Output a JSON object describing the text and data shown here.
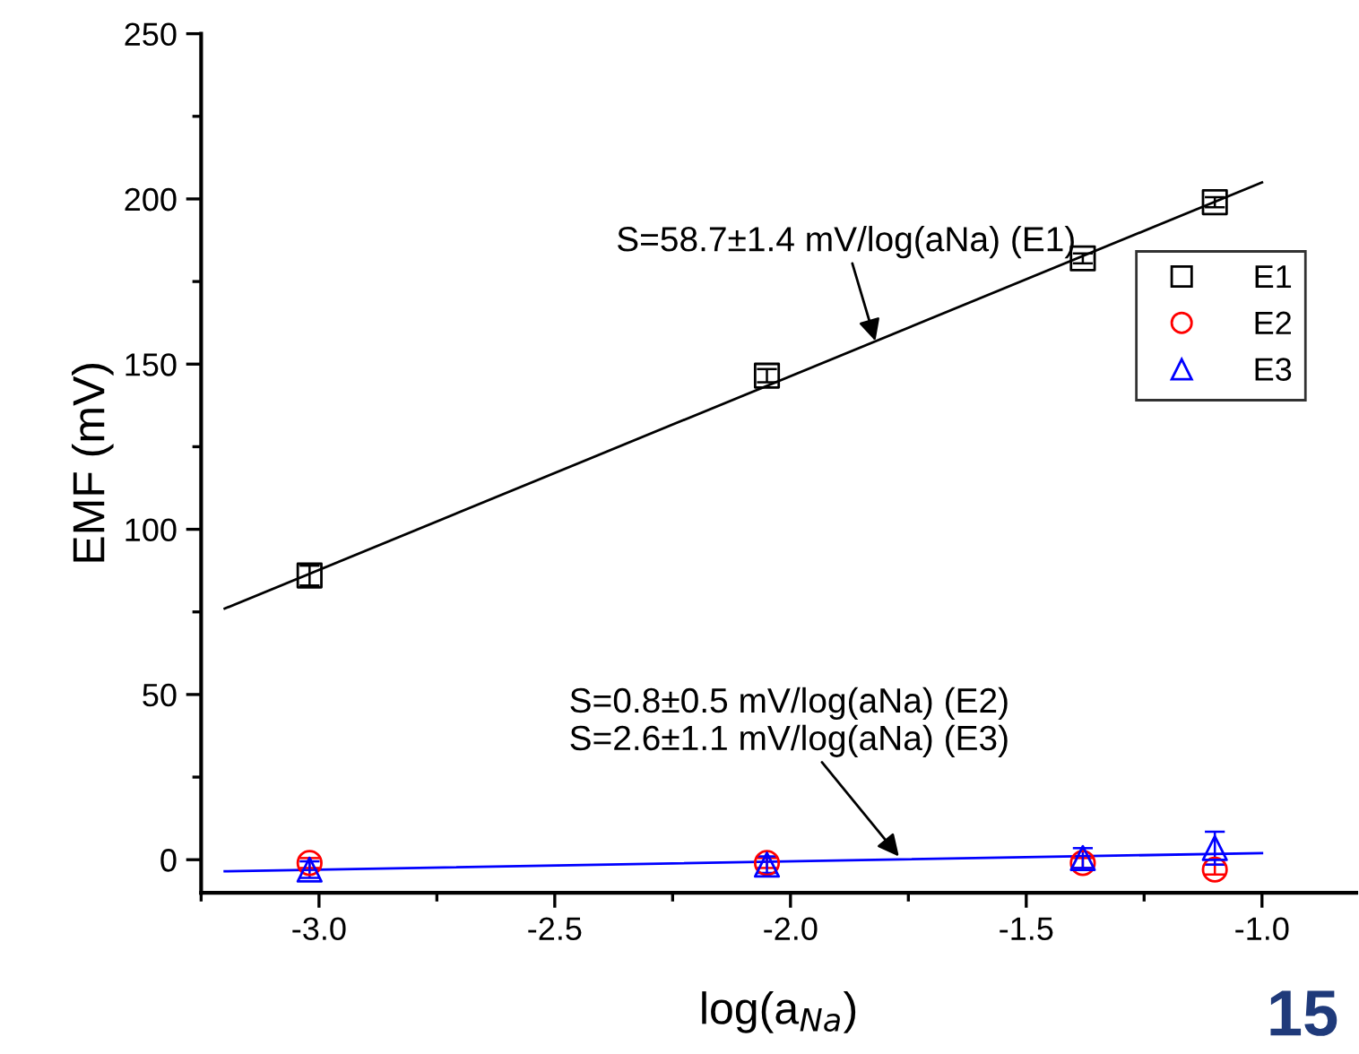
{
  "chart_data": {
    "type": "scatter",
    "xlabel": "log(a$_{Na}$)",
    "ylabel": "EMF (mV)",
    "xlim": [
      -3.25,
      -0.8
    ],
    "ylim": [
      -10,
      250
    ],
    "xticks": [
      {
        "value": -3.0,
        "label": "-3.0"
      },
      {
        "value": -2.5,
        "label": "-2.5"
      },
      {
        "value": -2.0,
        "label": "-2.0"
      },
      {
        "value": -1.5,
        "label": "-1.5"
      },
      {
        "value": -1.0,
        "label": "-1.0"
      }
    ],
    "yticks": [
      0,
      50,
      100,
      150,
      200,
      250
    ],
    "grid": false,
    "legend": "right",
    "series": [
      {
        "name": "E1",
        "color": "#000000",
        "marker": "square",
        "x": [
          -3.02,
          -2.05,
          -1.38,
          -1.1
        ],
        "values": [
          86,
          146.5,
          182,
          199
        ],
        "errors": [
          3,
          2,
          1.5,
          1.5
        ]
      },
      {
        "name": "E2",
        "color": "#ff0000",
        "marker": "circle",
        "x": [
          -3.02,
          -2.05,
          -1.38,
          -1.1
        ],
        "values": [
          -1,
          -1,
          -1,
          -3
        ],
        "errors": [
          1.5,
          1.5,
          1.5,
          1.5
        ]
      },
      {
        "name": "E3",
        "color": "#0000ff",
        "marker": "triangle",
        "x": [
          -3.02,
          -2.05,
          -1.38,
          -1.1
        ],
        "values": [
          -3,
          -1.5,
          0.5,
          3.5
        ],
        "errors": [
          2.5,
          2.5,
          3,
          5
        ]
      },
      {
        "type": "line",
        "color": "#000000",
        "line_style": "solid",
        "x": [
          -3.2,
          -1.0
        ],
        "values": [
          76,
          205
        ]
      },
      {
        "type": "line",
        "color": "#0000ff",
        "line_style": "solid",
        "x": [
          -3.2,
          -1.0
        ],
        "values": [
          -3.5,
          2
        ]
      }
    ],
    "annotations": [
      {
        "text": "S=58.7±1.4 mV/log(aNa) (E1)",
        "x": -1.82,
        "y": 157
      },
      {
        "text": "S=0.8±0.5 mV/log(aNa) (E2)\nS=2.6±1.1 mV/log(aNa) (E3)",
        "x": -1.77,
        "y": 1
      },
      "15"
    ]
  }
}
